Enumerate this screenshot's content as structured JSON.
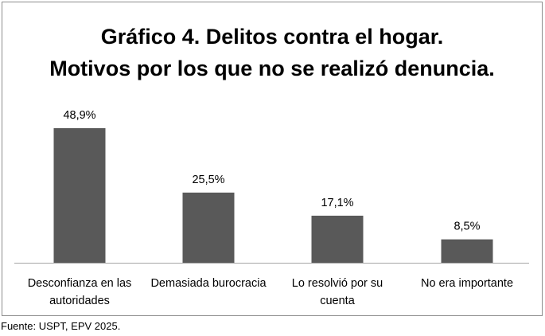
{
  "chart_data": {
    "type": "bar",
    "title": [
      "Gráfico 4. Delitos contra el hogar.",
      "Motivos por los que no se realizó denuncia."
    ],
    "categories": [
      [
        "Desconfianza en las",
        "autoridades"
      ],
      [
        "Demasiada burocracia"
      ],
      [
        "Lo resolvió por su",
        "cuenta"
      ],
      [
        "No era importante"
      ]
    ],
    "values": [
      48.9,
      25.5,
      17.1,
      8.5
    ],
    "data_labels": [
      "48,9%",
      "25,5%",
      "17,1%",
      "8,5%"
    ],
    "xlabel": "",
    "ylabel": "",
    "ylim": [
      0,
      48.9
    ],
    "grid": false,
    "legend": "none",
    "bar_color": "#595959"
  },
  "source": "Fuente: USPT, EPV 2025."
}
